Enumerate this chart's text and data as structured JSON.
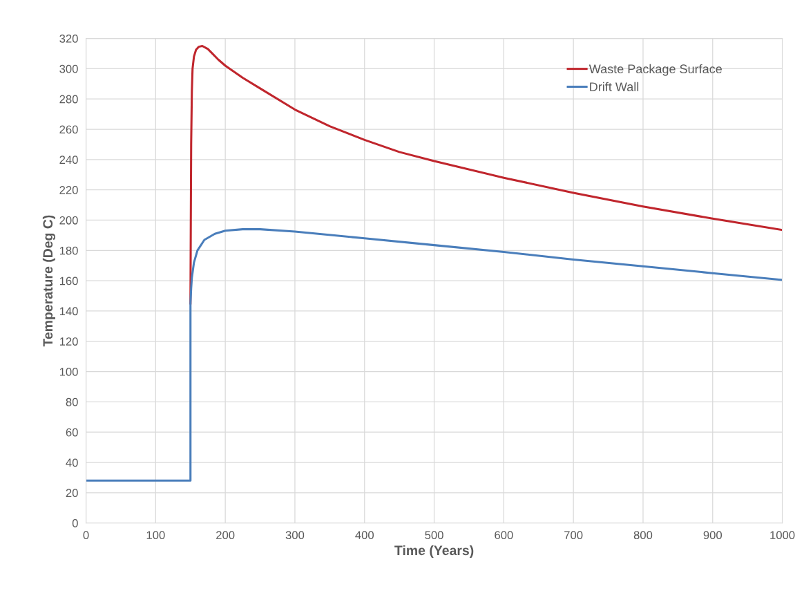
{
  "chart_data": {
    "type": "line",
    "xlabel": "Time (Years)",
    "ylabel": "Temperature (Deg C)",
    "xlim": [
      0,
      1000
    ],
    "xticks": [
      0,
      100,
      200,
      300,
      400,
      500,
      600,
      700,
      800,
      900,
      1000
    ],
    "ylim": [
      0,
      320
    ],
    "yticks": [
      0,
      20,
      40,
      60,
      80,
      100,
      120,
      140,
      160,
      180,
      200,
      220,
      240,
      260,
      280,
      300,
      320
    ],
    "grid": true,
    "legend": "top right",
    "marker": "none",
    "line_style": "solid",
    "series": [
      {
        "name": "Waste Package Surface",
        "color": "#c0262d",
        "x": [
          150,
          150.5,
          151,
          152,
          153,
          155,
          158,
          162,
          167,
          175,
          190,
          200,
          225,
          250,
          300,
          350,
          400,
          450,
          500,
          600,
          700,
          800,
          900,
          1000
        ],
        "values": [
          145,
          200,
          250,
          285,
          300,
          308,
          312.5,
          314.5,
          315,
          313,
          306,
          302,
          294,
          287,
          273,
          262,
          253,
          245,
          239,
          228,
          218,
          209,
          201,
          193.5
        ]
      },
      {
        "name": "Drift Wall",
        "color": "#4a7ebb",
        "x": [
          0,
          150,
          150,
          151,
          152,
          155,
          160,
          170,
          185,
          200,
          225,
          250,
          300,
          400,
          500,
          600,
          700,
          800,
          900,
          1000
        ],
        "values": [
          28,
          28,
          145,
          155,
          162,
          172,
          180,
          187,
          191,
          193,
          194,
          194,
          192.5,
          188,
          183.5,
          179,
          174,
          169.5,
          165,
          160.5
        ]
      }
    ]
  }
}
